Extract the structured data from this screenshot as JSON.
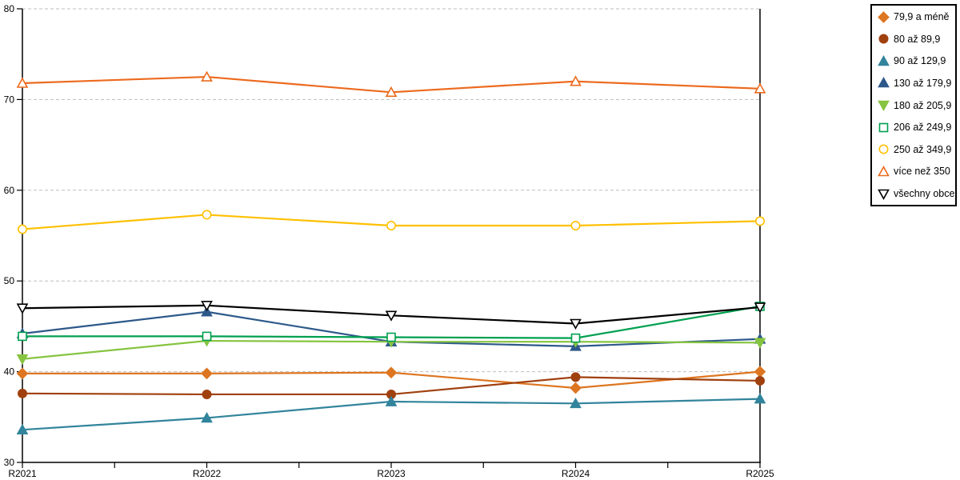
{
  "chart_data": {
    "type": "line",
    "title": "",
    "xlabel": "",
    "ylabel": "",
    "categories": [
      "R2021",
      "R2022",
      "R2023",
      "R2024",
      "R2025"
    ],
    "ylim": [
      30,
      80
    ],
    "y_ticks": [
      30,
      40,
      50,
      60,
      70,
      80
    ],
    "grid": "dashed horizontal at 40,50,60,70,80",
    "legend_position": "outside-right",
    "colors": {
      "gridline": "#bfbfbf",
      "axis": "#000000",
      "background": "#ffffff"
    },
    "series": [
      {
        "name": "79,9 a méně",
        "marker": "diamond",
        "fill": "solid",
        "color": "#DD7621",
        "values": [
          39.8,
          39.8,
          39.9,
          38.2,
          40.0
        ]
      },
      {
        "name": "80 až 89,9",
        "marker": "circle",
        "fill": "solid",
        "color": "#A0400E",
        "values": [
          37.6,
          37.5,
          37.5,
          39.4,
          39.0
        ]
      },
      {
        "name": "90 až 129,9",
        "marker": "triangle-up",
        "fill": "solid",
        "color": "#31849B",
        "values": [
          33.6,
          34.9,
          36.7,
          36.5,
          37.0
        ]
      },
      {
        "name": "130 až 179,9",
        "marker": "triangle-up",
        "fill": "solid",
        "color": "#2D598A",
        "values": [
          44.2,
          46.6,
          43.3,
          42.8,
          43.6
        ]
      },
      {
        "name": "180 až 205,9",
        "marker": "triangle-down",
        "fill": "solid",
        "color": "#86C440",
        "values": [
          41.4,
          43.4,
          43.3,
          43.3,
          43.2
        ]
      },
      {
        "name": "206 až 249,9",
        "marker": "square",
        "fill": "hollow",
        "color": "#00A050",
        "values": [
          43.9,
          43.9,
          43.8,
          43.7,
          47.2
        ]
      },
      {
        "name": "250 až 349,9",
        "marker": "circle",
        "fill": "hollow",
        "color": "#FFC000",
        "values": [
          55.7,
          57.3,
          56.1,
          56.1,
          56.6
        ]
      },
      {
        "name": "více než 350",
        "marker": "triangle-up",
        "fill": "hollow",
        "color": "#EC6A1E",
        "values": [
          71.8,
          72.5,
          70.8,
          72.0,
          71.2
        ]
      },
      {
        "name": "všechny obce",
        "marker": "triangle-down",
        "fill": "hollow",
        "color": "#000000",
        "values": [
          47.0,
          47.3,
          46.2,
          45.3,
          47.1
        ]
      }
    ]
  }
}
